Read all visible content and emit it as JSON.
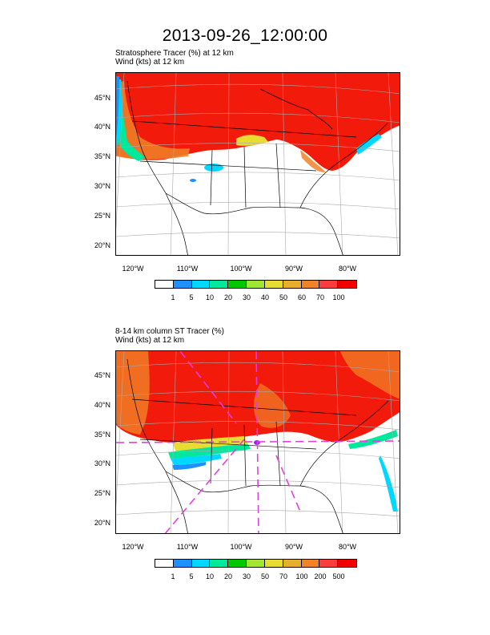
{
  "main_title": "2013-09-26_12:00:00",
  "panels": [
    {
      "title_line1": "Stratosphere Tracer   (%)     at   12 km",
      "title_line2": "Wind    (kts)     at   12 km",
      "lat_labels": [
        "45°N",
        "40°N",
        "35°N",
        "30°N",
        "25°N",
        "20°N"
      ],
      "lon_labels": [
        "120°W",
        "110°W",
        "100°W",
        "90°W",
        "80°W"
      ],
      "colorbar_labels": [
        "1",
        "5",
        "10",
        "20",
        "30",
        "40",
        "50",
        "60",
        "70",
        "100"
      ],
      "colorbar_colors": [
        "#ffffff",
        "#1e90ff",
        "#00d8ff",
        "#00e89c",
        "#00c800",
        "#a0e632",
        "#e6dc32",
        "#e6af2d",
        "#f08228",
        "#fa3c3c",
        "#f00000"
      ]
    },
    {
      "title_line1": "8-14 km column ST Tracer   (%)",
      "title_line2": "Wind    (kts)     at   12 km",
      "lat_labels": [
        "45°N",
        "40°N",
        "35°N",
        "30°N",
        "25°N",
        "20°N"
      ],
      "lon_labels": [
        "120°W",
        "110°W",
        "100°W",
        "90°W",
        "80°W"
      ],
      "colorbar_labels": [
        "1",
        "5",
        "10",
        "20",
        "30",
        "50",
        "70",
        "100",
        "200",
        "500"
      ],
      "colorbar_colors": [
        "#ffffff",
        "#1e90ff",
        "#00d8ff",
        "#00e89c",
        "#00c800",
        "#a0e632",
        "#e6dc32",
        "#e6af2d",
        "#f08228",
        "#fa3c3c",
        "#f00000"
      ]
    }
  ]
}
